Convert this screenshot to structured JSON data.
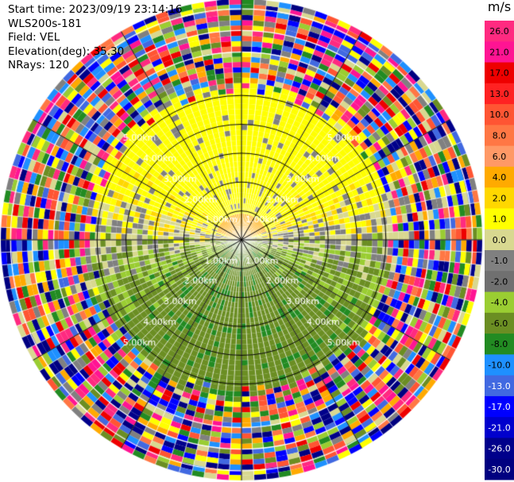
{
  "info": {
    "start_time": "Start time: 2023/09/19 23:14:16",
    "station": "WLS200s-181",
    "field": "Field: VEL",
    "elevation": "Elevation(deg): 35.30",
    "nrays": "NRays: 120"
  },
  "chart_data": {
    "type": "heatmap",
    "projection": "polar-ppi",
    "field": "VEL",
    "nrays": 120,
    "elevation_deg": 35.3,
    "grid": true,
    "range_rings": [
      {
        "km": 1.0,
        "label": "1.00km"
      },
      {
        "km": 2.0,
        "label": "2.00km"
      },
      {
        "km": 3.0,
        "label": "3.00km"
      },
      {
        "km": 4.0,
        "label": "4.00km"
      },
      {
        "km": 5.0,
        "label": "5.00km"
      }
    ],
    "max_range_km": 5.0,
    "colorbar": {
      "unit": "m/s",
      "ticks": [
        "26.0",
        "21.0",
        "17.0",
        "13.0",
        "10.0",
        "8.0",
        "6.0",
        "4.0",
        "2.0",
        "1.0",
        "0.0",
        "-1.0",
        "-2.0",
        "-4.0",
        "-6.0",
        "-8.0",
        "-10.0",
        "-13.0",
        "-17.0",
        "-21.0",
        "-26.0",
        "-30.0"
      ],
      "colors": [
        "#ff2a80",
        "#ff1493",
        "#ee0000",
        "#ff2222",
        "#ff5533",
        "#ff7744",
        "#ff9966",
        "#ffaa00",
        "#ffd700",
        "#ffff00",
        "#d8d890",
        "#808080",
        "#707070",
        "#9acd32",
        "#6b8e23",
        "#228b22",
        "#1e90ff",
        "#4169e1",
        "#0000ff",
        "#0000cd",
        "#00008b",
        "#000080"
      ]
    }
  }
}
